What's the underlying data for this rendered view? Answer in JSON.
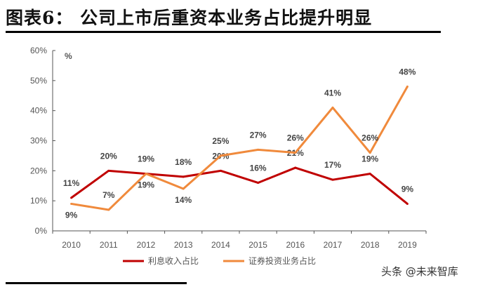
{
  "header": {
    "title": "图表6：  公司上市后重资本业务占比提升明显"
  },
  "watermark": "头条 @未来智库",
  "chart_data": {
    "type": "line",
    "title": "图表6：  公司上市后重资本业务占比提升明显",
    "ylabel": "%",
    "xlabel": "",
    "ylim": [
      0,
      60
    ],
    "yticks": [
      "0%",
      "10%",
      "20%",
      "30%",
      "40%",
      "50%",
      "60%"
    ],
    "categories": [
      "2010",
      "2011",
      "2012",
      "2013",
      "2014",
      "2015",
      "2016",
      "2017",
      "2018",
      "2019"
    ],
    "legend_position": "bottom",
    "grid": false,
    "series": [
      {
        "name": "利息收入占比",
        "color": "#c00000",
        "values": [
          11,
          20,
          19,
          18,
          20,
          16,
          21,
          17,
          19,
          9
        ],
        "labels": [
          "11%",
          "20%",
          "19%",
          "18%",
          "20%",
          "16%",
          "21%",
          "17%",
          "19%",
          "9%"
        ]
      },
      {
        "name": "证券投资业务占比",
        "color": "#f08a3c",
        "values": [
          9,
          7,
          19,
          14,
          25,
          27,
          26,
          41,
          26,
          48
        ],
        "labels": [
          "9%",
          "7%",
          "19%",
          "14%",
          "25%",
          "27%",
          "26%",
          "41%",
          "26%",
          "48%"
        ]
      }
    ]
  }
}
